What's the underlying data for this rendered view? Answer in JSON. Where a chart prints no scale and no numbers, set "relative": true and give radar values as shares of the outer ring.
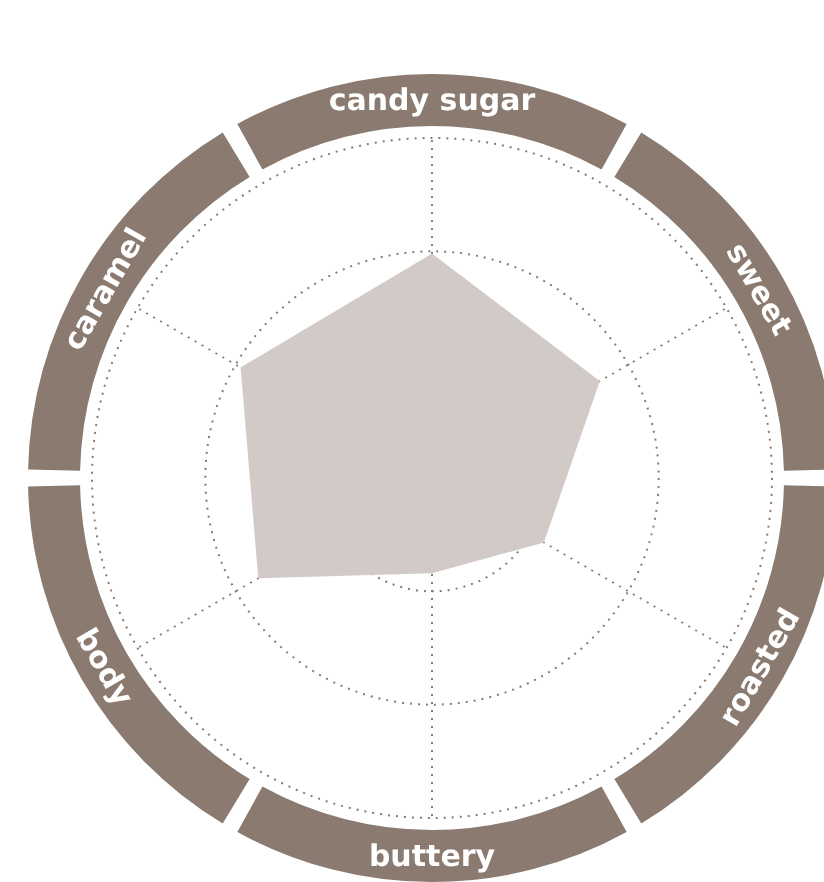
{
  "chart_data": {
    "type": "radar",
    "relative": true,
    "categories": [
      "candy sugar",
      "sweet",
      "roasted",
      "buttery",
      "body",
      "caramel"
    ],
    "series": [
      {
        "color": "#d2cac6",
        "values": [
          0.66,
          0.57,
          0.38,
          0.28,
          0.59,
          0.65
        ]
      }
    ],
    "grid": true
  }
}
